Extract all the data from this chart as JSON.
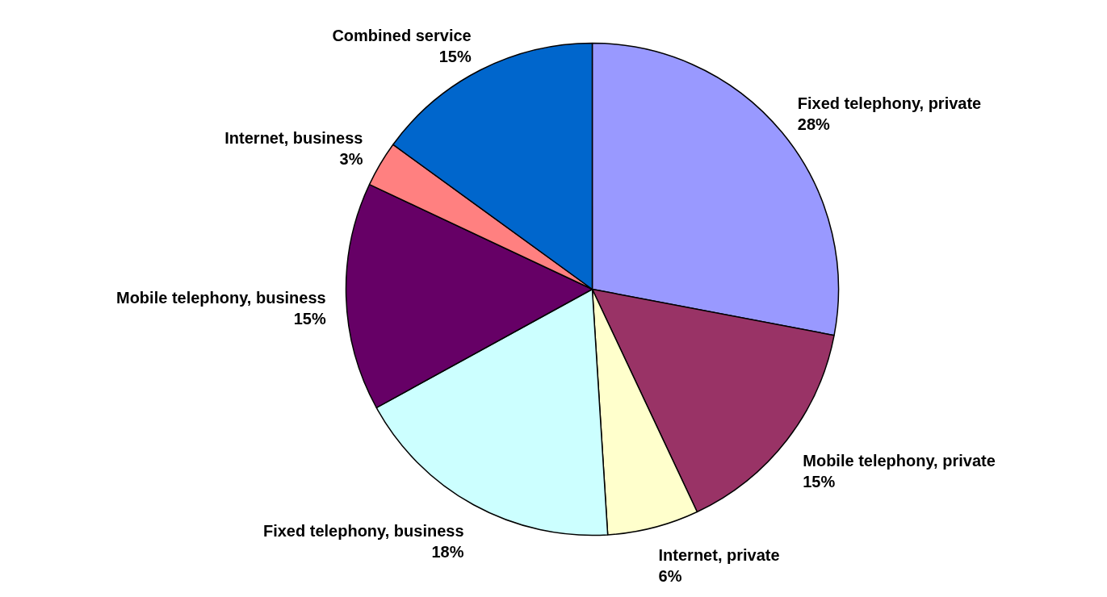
{
  "chart_data": {
    "type": "pie",
    "categories": [
      "Fixed telephony, private",
      "Mobile telephony, private",
      "Internet, private",
      "Fixed telephony, business",
      "Mobile telephony, business",
      "Internet, business",
      "Combined service"
    ],
    "values": [
      28,
      15,
      6,
      18,
      15,
      3,
      15
    ],
    "value_labels": [
      "28%",
      "15%",
      "6%",
      "18%",
      "15%",
      "3%",
      "15%"
    ],
    "colors": [
      "#9999ff",
      "#993366",
      "#ffffcc",
      "#ccffff",
      "#660066",
      "#ff8080",
      "#0066cc"
    ],
    "legend": false
  }
}
